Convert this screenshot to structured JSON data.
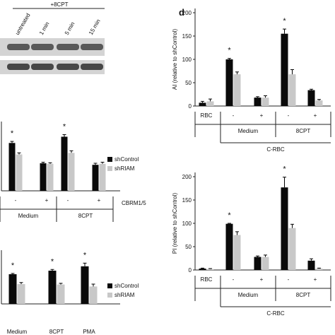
{
  "colors": {
    "dark": "#0a0a0a",
    "light": "#c8c8c8",
    "axis": "#222222"
  },
  "blot": {
    "header": "+8CPT",
    "lanes": [
      "untreated",
      "1 min",
      "5 min",
      "15 min"
    ]
  },
  "panel_d_label": "d",
  "chart_data": [
    {
      "type": "bar",
      "panel": "top-left-b",
      "categories": [
        "-",
        "+",
        "-",
        "+"
      ],
      "groups": [
        "Medium",
        "8CPT"
      ],
      "condition_label": "CBRM1/5",
      "series": [
        {
          "name": "shControl",
          "values": [
            92,
            53,
            104,
            50
          ],
          "errors": [
            3,
            2,
            4,
            3
          ]
        },
        {
          "name": "shRIAM",
          "values": [
            70,
            52,
            73,
            52
          ],
          "errors": [
            3,
            2,
            4,
            3
          ]
        }
      ],
      "asterisks": [
        0,
        2
      ],
      "ylim": [
        0,
        125
      ],
      "legend_position": "right"
    },
    {
      "type": "bar",
      "panel": "bottom-left",
      "categories": [
        "Medium",
        "8CPT",
        "PMA"
      ],
      "series": [
        {
          "name": "shControl",
          "values": [
            75,
            84,
            95
          ],
          "errors": [
            2,
            3,
            8
          ]
        },
        {
          "name": "shRIAM",
          "values": [
            50,
            49,
            44
          ],
          "errors": [
            4,
            3,
            6
          ]
        }
      ],
      "asterisks": [
        0,
        1,
        2
      ],
      "ylim": [
        0,
        125
      ],
      "legend_position": "right"
    },
    {
      "type": "bar",
      "panel": "d-top",
      "ylabel": "AI (relative to shControl)",
      "categories": [
        "RBC",
        "-",
        "+",
        "-",
        "+"
      ],
      "groups": [
        "Medium",
        "8CPT"
      ],
      "group_label": "C-RBC",
      "series": [
        {
          "name": "shControl",
          "values": [
            7,
            100,
            18,
            155,
            34
          ],
          "errors": [
            3,
            2,
            2,
            10,
            2
          ]
        },
        {
          "name": "shRIAM",
          "values": [
            10,
            68,
            18,
            68,
            12
          ],
          "errors": [
            5,
            5,
            4,
            10,
            2
          ]
        }
      ],
      "asterisks": [
        1,
        3
      ],
      "ylim": [
        0,
        200
      ],
      "yticks": [
        0,
        50,
        100,
        150,
        200
      ]
    },
    {
      "type": "bar",
      "panel": "d-bottom",
      "ylabel": "PI (relative to shControl)",
      "categories": [
        "RBC",
        "-",
        "+",
        "-",
        "+"
      ],
      "groups": [
        "Medium",
        "8CPT"
      ],
      "group_label": "C-RBC",
      "series": [
        {
          "name": "shControl",
          "values": [
            3,
            99,
            28,
            177,
            20
          ],
          "errors": [
            1,
            1,
            2,
            22,
            4
          ]
        },
        {
          "name": "shRIAM",
          "values": [
            2,
            75,
            28,
            90,
            3
          ],
          "errors": [
            1,
            7,
            4,
            8,
            1
          ]
        }
      ],
      "asterisks": [
        1,
        3
      ],
      "ylim": [
        0,
        200
      ],
      "yticks": [
        0,
        50,
        100,
        150,
        200
      ]
    }
  ]
}
